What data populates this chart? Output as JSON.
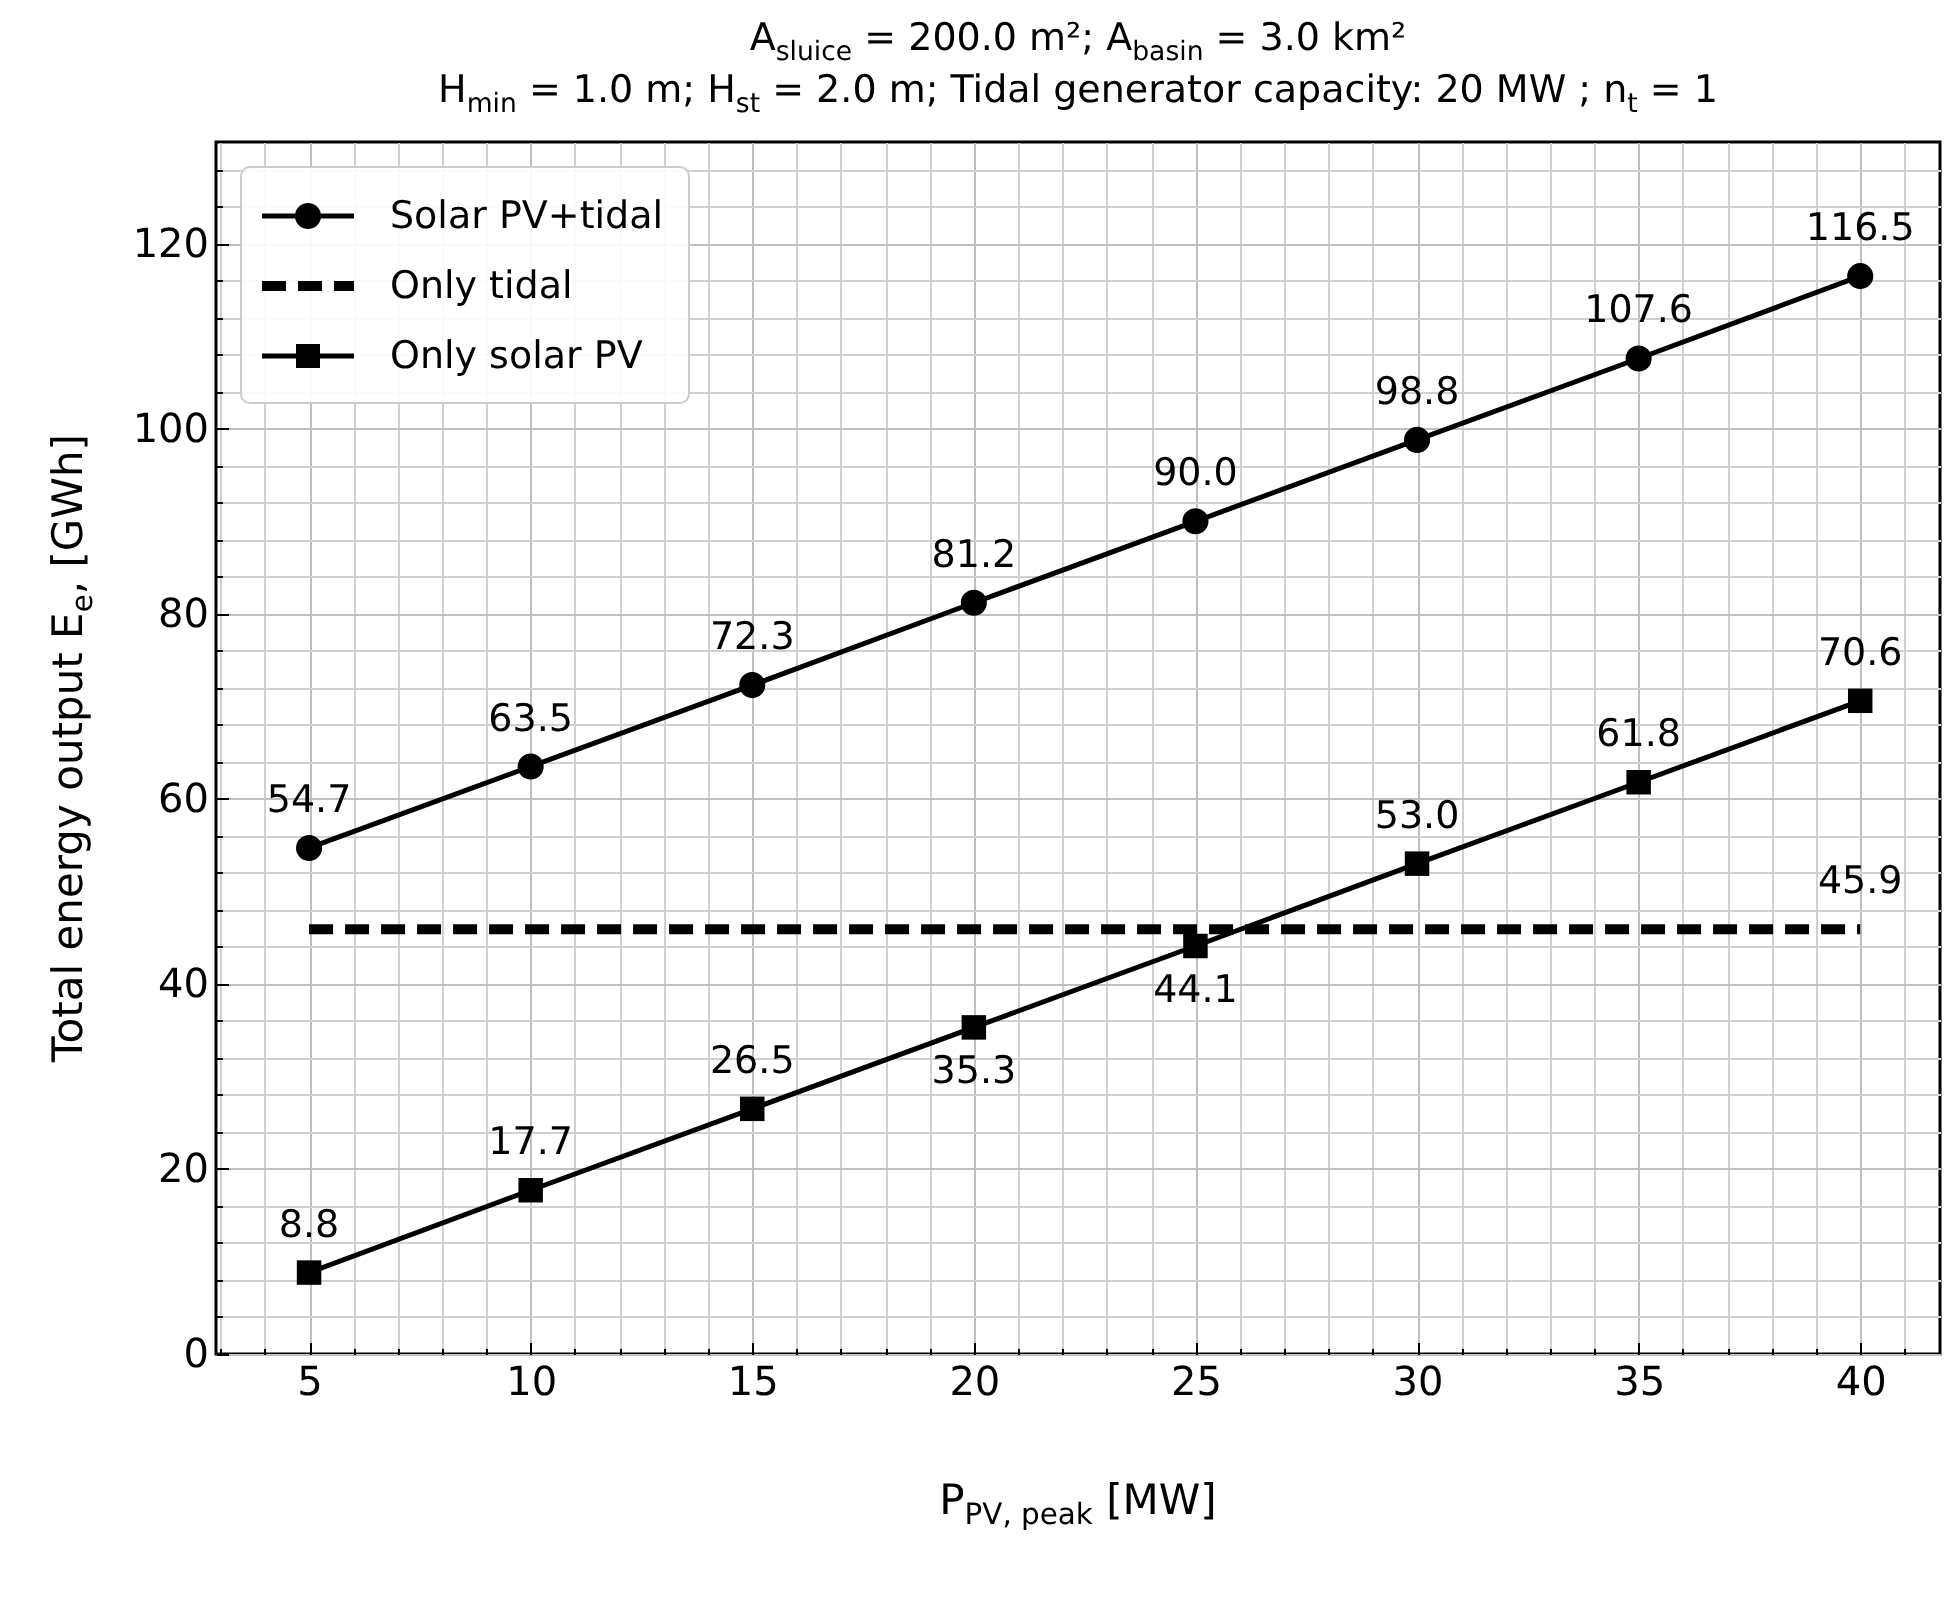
{
  "chart_data": {
    "type": "line",
    "title": "A$_{sluice}$ = 200.0 m²; A$_{basin}$ = 3.0 km²",
    "subtitle": "H$_{min}$ = 1.0 m; H$_{st}$ = 2.0 m; Tidal generator capacity: 20 MW ; n$_{t}$ = 1",
    "xlabel": "P$_{PV, peak}$ [MW]",
    "ylabel": "Total energy output E$_{e}$, [GWh]",
    "x": [
      5,
      10,
      15,
      20,
      25,
      30,
      35,
      40
    ],
    "series": [
      {
        "name": "Solar PV+tidal",
        "color": "#000000",
        "marker": "circle",
        "line_style": "solid",
        "values": [
          54.7,
          63.5,
          72.3,
          81.2,
          90.0,
          98.8,
          107.6,
          116.5
        ],
        "value_labels": [
          "54.7",
          "63.5",
          "72.3",
          "81.2",
          "90.0",
          "98.8",
          "107.6",
          "116.5"
        ]
      },
      {
        "name": "Only tidal",
        "color": "#000000",
        "marker": "none",
        "line_style": "dashed",
        "values": [
          45.9,
          45.9,
          45.9,
          45.9,
          45.9,
          45.9,
          45.9,
          45.9
        ],
        "value_labels": [
          null,
          null,
          null,
          null,
          null,
          null,
          null,
          "45.9"
        ]
      },
      {
        "name": "Only solar PV",
        "color": "#000000",
        "marker": "square",
        "line_style": "solid",
        "values": [
          8.8,
          17.7,
          26.5,
          35.3,
          44.1,
          53.0,
          61.8,
          70.6
        ],
        "value_labels": [
          "8.8",
          "17.7",
          "26.5",
          "35.3",
          "44.1",
          "53.0",
          "61.8",
          "70.6"
        ]
      }
    ],
    "xlim": [
      2.9,
      41.8
    ],
    "ylim": [
      0,
      131
    ],
    "xticks": [
      5,
      10,
      15,
      20,
      25,
      30,
      35,
      40
    ],
    "yticks": [
      0,
      20,
      40,
      60,
      80,
      100,
      120
    ],
    "grid": true,
    "legend": "top left"
  }
}
